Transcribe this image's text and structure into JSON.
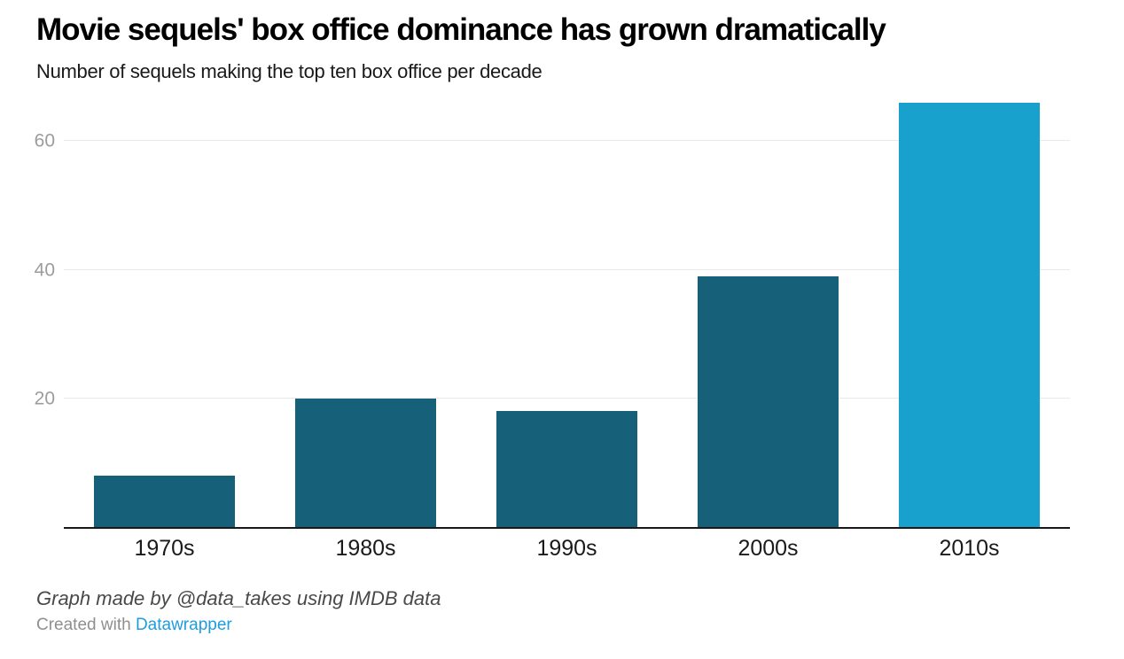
{
  "chart_data": {
    "type": "bar",
    "title": "Movie sequels' box office dominance has grown dramatically",
    "subtitle": "Number of sequels making the top ten box office per decade",
    "categories": [
      "1970s",
      "1980s",
      "1990s",
      "2000s",
      "2010s"
    ],
    "values": [
      8,
      20,
      18,
      39,
      66
    ],
    "bar_colors": [
      "#16607a",
      "#16607a",
      "#16607a",
      "#16607a",
      "#18a1cd"
    ],
    "xlabel": "",
    "ylabel": "",
    "yticks": [
      20,
      40,
      60
    ],
    "ylim": [
      0,
      67.5
    ],
    "grid": "horizontal",
    "legend": "none"
  },
  "footer": {
    "byline": "Graph made by @data_takes using IMDB data",
    "created_with_label": "Created with ",
    "brand": "Datawrapper"
  },
  "colors": {
    "bar_dark": "#16607a",
    "bar_highlight": "#18a1cd",
    "gridline": "#e9e9e9",
    "axis_line": "#18181a",
    "tick_label": "#9c9c9c",
    "link": "#1e9ce0",
    "background": "#ffffff"
  }
}
